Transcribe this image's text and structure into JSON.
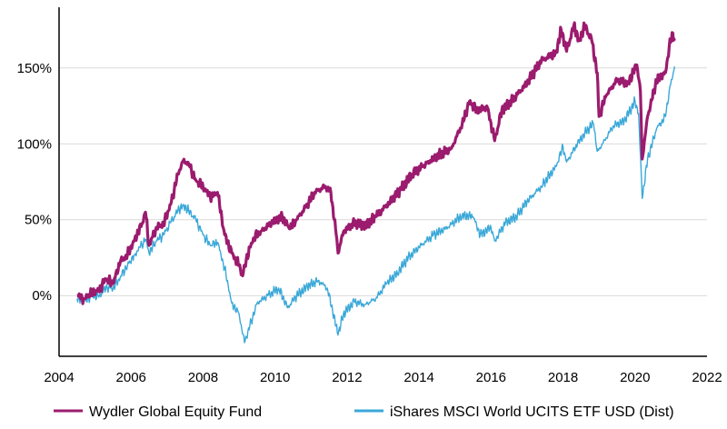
{
  "chart_data": {
    "type": "line",
    "title": "",
    "xlabel": "",
    "ylabel": "",
    "xlim": [
      2004,
      2022
    ],
    "ylim": [
      -40,
      190
    ],
    "x_ticks": [
      2004,
      2006,
      2008,
      2010,
      2012,
      2014,
      2016,
      2018,
      2020,
      2022
    ],
    "x_tick_labels": [
      "2004",
      "2006",
      "2008",
      "2010",
      "2012",
      "2014",
      "2016",
      "2018",
      "2020",
      "2022"
    ],
    "y_ticks": [
      0,
      50,
      100,
      150
    ],
    "y_tick_labels": [
      "0%",
      "50%",
      "100%",
      "150%"
    ],
    "grid": "horizontal",
    "legend_position": "bottom",
    "series": [
      {
        "name": "Wydler Global Equity Fund",
        "color": "#9b1b6e",
        "points": [
          [
            2004.5,
            0
          ],
          [
            2004.7,
            -2
          ],
          [
            2004.9,
            2
          ],
          [
            2005.1,
            3
          ],
          [
            2005.3,
            11
          ],
          [
            2005.5,
            8
          ],
          [
            2005.7,
            22
          ],
          [
            2005.9,
            27
          ],
          [
            2006.1,
            37
          ],
          [
            2006.3,
            47
          ],
          [
            2006.4,
            55
          ],
          [
            2006.5,
            33
          ],
          [
            2006.7,
            45
          ],
          [
            2006.9,
            47
          ],
          [
            2007.1,
            60
          ],
          [
            2007.3,
            80
          ],
          [
            2007.45,
            89
          ],
          [
            2007.6,
            87
          ],
          [
            2007.8,
            76
          ],
          [
            2008.0,
            72
          ],
          [
            2008.2,
            65
          ],
          [
            2008.4,
            68
          ],
          [
            2008.6,
            40
          ],
          [
            2008.8,
            28
          ],
          [
            2009.0,
            20
          ],
          [
            2009.1,
            13
          ],
          [
            2009.2,
            24
          ],
          [
            2009.4,
            38
          ],
          [
            2009.6,
            42
          ],
          [
            2009.9,
            48
          ],
          [
            2010.2,
            52
          ],
          [
            2010.4,
            44
          ],
          [
            2010.6,
            50
          ],
          [
            2010.9,
            60
          ],
          [
            2011.1,
            68
          ],
          [
            2011.4,
            72
          ],
          [
            2011.55,
            68
          ],
          [
            2011.7,
            40
          ],
          [
            2011.75,
            28
          ],
          [
            2011.9,
            42
          ],
          [
            2012.2,
            48
          ],
          [
            2012.5,
            46
          ],
          [
            2012.8,
            52
          ],
          [
            2013.2,
            62
          ],
          [
            2013.5,
            70
          ],
          [
            2013.8,
            80
          ],
          [
            2014.1,
            85
          ],
          [
            2014.5,
            92
          ],
          [
            2014.9,
            97
          ],
          [
            2015.2,
            113
          ],
          [
            2015.4,
            128
          ],
          [
            2015.6,
            122
          ],
          [
            2015.9,
            124
          ],
          [
            2016.1,
            102
          ],
          [
            2016.3,
            122
          ],
          [
            2016.6,
            129
          ],
          [
            2017.0,
            140
          ],
          [
            2017.4,
            155
          ],
          [
            2017.8,
            160
          ],
          [
            2017.95,
            175
          ],
          [
            2018.1,
            161
          ],
          [
            2018.3,
            178
          ],
          [
            2018.45,
            168
          ],
          [
            2018.6,
            178
          ],
          [
            2018.8,
            168
          ],
          [
            2018.95,
            147
          ],
          [
            2019.0,
            118
          ],
          [
            2019.2,
            132
          ],
          [
            2019.5,
            142
          ],
          [
            2019.8,
            140
          ],
          [
            2020.05,
            152
          ],
          [
            2020.15,
            135
          ],
          [
            2020.2,
            90
          ],
          [
            2020.35,
            118
          ],
          [
            2020.6,
            142
          ],
          [
            2020.85,
            147
          ],
          [
            2020.95,
            164
          ],
          [
            2021.05,
            173
          ],
          [
            2021.1,
            168
          ]
        ]
      },
      {
        "name": "iShares MSCI World UCITS ETF USD (Dist)",
        "color": "#3aa8d8",
        "points": [
          [
            2004.5,
            -2
          ],
          [
            2004.7,
            -4
          ],
          [
            2004.9,
            0
          ],
          [
            2005.1,
            -1
          ],
          [
            2005.3,
            5
          ],
          [
            2005.5,
            5
          ],
          [
            2005.7,
            12
          ],
          [
            2005.9,
            20
          ],
          [
            2006.1,
            27
          ],
          [
            2006.3,
            34
          ],
          [
            2006.4,
            37
          ],
          [
            2006.5,
            28
          ],
          [
            2006.7,
            36
          ],
          [
            2006.9,
            40
          ],
          [
            2007.1,
            48
          ],
          [
            2007.3,
            56
          ],
          [
            2007.45,
            60
          ],
          [
            2007.6,
            56
          ],
          [
            2007.8,
            50
          ],
          [
            2008.0,
            40
          ],
          [
            2008.2,
            33
          ],
          [
            2008.4,
            35
          ],
          [
            2008.6,
            18
          ],
          [
            2008.8,
            -5
          ],
          [
            2009.0,
            -12
          ],
          [
            2009.15,
            -31
          ],
          [
            2009.3,
            -20
          ],
          [
            2009.5,
            -5
          ],
          [
            2009.8,
            0
          ],
          [
            2010.1,
            5
          ],
          [
            2010.35,
            -8
          ],
          [
            2010.6,
            0
          ],
          [
            2010.9,
            6
          ],
          [
            2011.2,
            10
          ],
          [
            2011.45,
            5
          ],
          [
            2011.6,
            -10
          ],
          [
            2011.75,
            -26
          ],
          [
            2011.9,
            -12
          ],
          [
            2012.2,
            -4
          ],
          [
            2012.5,
            -6
          ],
          [
            2012.8,
            -2
          ],
          [
            2013.1,
            8
          ],
          [
            2013.4,
            15
          ],
          [
            2013.7,
            25
          ],
          [
            2014.0,
            32
          ],
          [
            2014.4,
            40
          ],
          [
            2014.8,
            45
          ],
          [
            2015.2,
            53
          ],
          [
            2015.5,
            52
          ],
          [
            2015.7,
            40
          ],
          [
            2016.0,
            45
          ],
          [
            2016.1,
            36
          ],
          [
            2016.4,
            48
          ],
          [
            2016.7,
            52
          ],
          [
            2017.0,
            62
          ],
          [
            2017.4,
            72
          ],
          [
            2017.8,
            85
          ],
          [
            2018.0,
            98
          ],
          [
            2018.1,
            88
          ],
          [
            2018.4,
            100
          ],
          [
            2018.7,
            110
          ],
          [
            2018.85,
            113
          ],
          [
            2018.95,
            95
          ],
          [
            2019.1,
            100
          ],
          [
            2019.4,
            112
          ],
          [
            2019.7,
            115
          ],
          [
            2020.0,
            128
          ],
          [
            2020.1,
            120
          ],
          [
            2020.2,
            64
          ],
          [
            2020.35,
            90
          ],
          [
            2020.6,
            110
          ],
          [
            2020.85,
            118
          ],
          [
            2020.95,
            135
          ],
          [
            2021.05,
            145
          ],
          [
            2021.1,
            151
          ]
        ]
      }
    ]
  }
}
